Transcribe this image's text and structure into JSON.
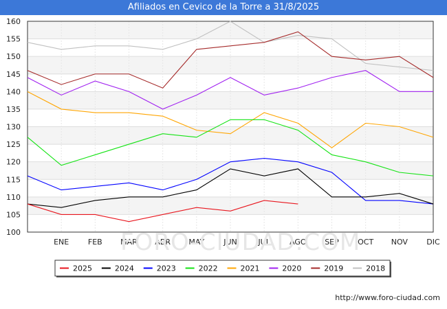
{
  "chart_data": {
    "type": "line",
    "title": "Afiliados en Cevico de la Torre a 31/8/2025",
    "categories": [
      "",
      "ENE",
      "FEB",
      "MAR",
      "ABR",
      "MAY",
      "JUN",
      "JUL",
      "AGO",
      "SEP",
      "OCT",
      "NOV",
      "DIC"
    ],
    "ylim": [
      100,
      160
    ],
    "yticks": [
      100,
      105,
      110,
      115,
      120,
      125,
      130,
      135,
      140,
      145,
      150,
      155,
      160
    ],
    "grid": true,
    "legend_position": "bottom",
    "series": [
      {
        "name": "2025",
        "color": "#e8141c",
        "values": [
          108,
          105,
          105,
          103,
          105,
          107,
          106,
          109,
          108,
          null,
          null,
          null,
          null
        ]
      },
      {
        "name": "2024",
        "color": "#000000",
        "values": [
          108,
          107,
          109,
          110,
          110,
          112,
          118,
          116,
          118,
          110,
          110,
          111,
          108
        ]
      },
      {
        "name": "2023",
        "color": "#0000ff",
        "values": [
          116,
          112,
          113,
          114,
          112,
          115,
          120,
          121,
          120,
          117,
          109,
          109,
          108
        ]
      },
      {
        "name": "2022",
        "color": "#12e312",
        "values": [
          127,
          119,
          122,
          125,
          128,
          127,
          132,
          132,
          129,
          122,
          120,
          117,
          116
        ]
      },
      {
        "name": "2021",
        "color": "#ffa500",
        "values": [
          140,
          135,
          134,
          134,
          133,
          129,
          128,
          134,
          131,
          124,
          131,
          130,
          127
        ]
      },
      {
        "name": "2020",
        "color": "#a020f0",
        "values": [
          144,
          139,
          143,
          140,
          135,
          139,
          144,
          139,
          141,
          144,
          146,
          140,
          140
        ]
      },
      {
        "name": "2019",
        "color": "#a52a2a",
        "values": [
          146,
          142,
          145,
          145,
          141,
          152,
          153,
          154,
          157,
          150,
          149,
          150,
          144
        ]
      },
      {
        "name": "2018",
        "color": "#c0c0c0",
        "values": [
          154,
          152,
          153,
          153,
          152,
          155,
          160,
          154,
          156,
          155,
          148,
          147,
          146
        ]
      }
    ]
  },
  "watermark": "FORO-CIUDAD.COM",
  "site_url": "http://www.foro-ciudad.com"
}
